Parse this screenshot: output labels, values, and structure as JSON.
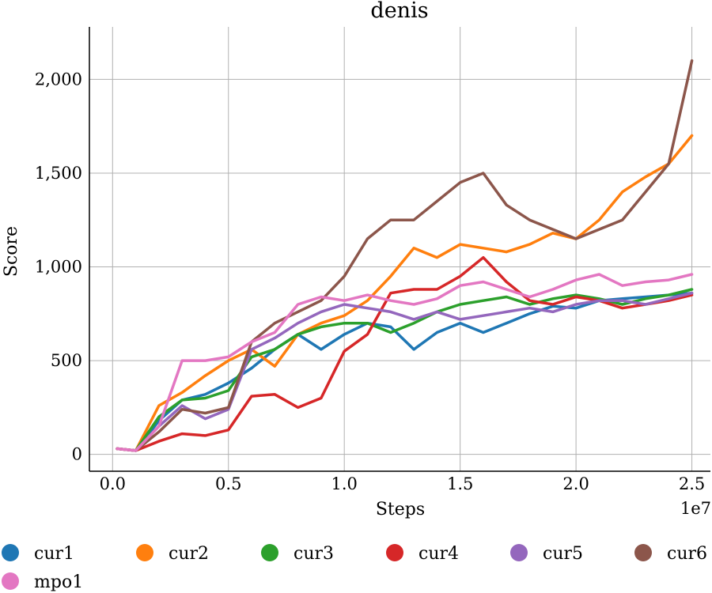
{
  "chart_data": {
    "type": "line",
    "title": "denis",
    "xlabel": "Steps",
    "ylabel": "Score",
    "x_offset_label": "1e7",
    "x_ticks": [
      "0.0",
      "0.5",
      "1.0",
      "1.5",
      "2.0",
      "2.5"
    ],
    "y_ticks": [
      "0",
      "500",
      "1,000",
      "1,500",
      "2,000"
    ],
    "xlim": [
      -0.1,
      2.58
    ],
    "ylim": [
      -90,
      2280
    ],
    "grid": true,
    "legend_position": "bottom",
    "series": [
      {
        "name": "cur1",
        "color": "#1f77b4",
        "x": [
          0.02,
          0.1,
          0.2,
          0.3,
          0.4,
          0.5,
          0.6,
          0.7,
          0.8,
          0.9,
          1.0,
          1.1,
          1.2,
          1.3,
          1.4,
          1.5,
          1.6,
          1.7,
          1.8,
          1.9,
          2.0,
          2.1,
          2.2,
          2.3,
          2.4,
          2.5
        ],
        "y": [
          30,
          20,
          180,
          290,
          320,
          380,
          460,
          560,
          640,
          560,
          640,
          700,
          680,
          560,
          650,
          700,
          650,
          700,
          750,
          790,
          780,
          820,
          830,
          840,
          850,
          860
        ]
      },
      {
        "name": "cur2",
        "color": "#ff7f0e",
        "x": [
          0.02,
          0.1,
          0.2,
          0.3,
          0.4,
          0.5,
          0.6,
          0.7,
          0.8,
          0.9,
          1.0,
          1.1,
          1.2,
          1.3,
          1.4,
          1.5,
          1.6,
          1.7,
          1.8,
          1.9,
          2.0,
          2.1,
          2.2,
          2.3,
          2.4,
          2.5
        ],
        "y": [
          30,
          20,
          260,
          330,
          420,
          500,
          560,
          470,
          640,
          700,
          740,
          820,
          950,
          1100,
          1050,
          1120,
          1100,
          1080,
          1120,
          1180,
          1150,
          1250,
          1400,
          1480,
          1550,
          1700
        ]
      },
      {
        "name": "cur3",
        "color": "#2ca02c",
        "x": [
          0.02,
          0.1,
          0.2,
          0.3,
          0.4,
          0.5,
          0.6,
          0.7,
          0.8,
          0.9,
          1.0,
          1.1,
          1.2,
          1.3,
          1.4,
          1.5,
          1.6,
          1.7,
          1.8,
          1.9,
          2.0,
          2.1,
          2.2,
          2.3,
          2.4,
          2.5
        ],
        "y": [
          30,
          20,
          200,
          290,
          300,
          340,
          520,
          560,
          640,
          680,
          700,
          700,
          650,
          700,
          760,
          800,
          820,
          840,
          800,
          830,
          850,
          830,
          800,
          830,
          850,
          880
        ]
      },
      {
        "name": "cur4",
        "color": "#d62728",
        "x": [
          0.02,
          0.1,
          0.2,
          0.3,
          0.4,
          0.5,
          0.6,
          0.7,
          0.8,
          0.9,
          1.0,
          1.1,
          1.2,
          1.3,
          1.4,
          1.5,
          1.6,
          1.7,
          1.8,
          1.9,
          2.0,
          2.1,
          2.2,
          2.3,
          2.4,
          2.5
        ],
        "y": [
          30,
          20,
          70,
          110,
          100,
          130,
          310,
          320,
          250,
          300,
          550,
          640,
          860,
          880,
          880,
          950,
          1050,
          920,
          820,
          800,
          840,
          820,
          780,
          800,
          820,
          850
        ]
      },
      {
        "name": "cur5",
        "color": "#9467bd",
        "x": [
          0.02,
          0.1,
          0.2,
          0.3,
          0.4,
          0.5,
          0.6,
          0.7,
          0.8,
          0.9,
          1.0,
          1.1,
          1.2,
          1.3,
          1.4,
          1.5,
          1.6,
          1.7,
          1.8,
          1.9,
          2.0,
          2.1,
          2.2,
          2.3,
          2.4,
          2.5
        ],
        "y": [
          30,
          20,
          150,
          260,
          190,
          240,
          560,
          620,
          700,
          760,
          800,
          780,
          760,
          720,
          760,
          720,
          740,
          760,
          780,
          760,
          800,
          820,
          820,
          800,
          830,
          860
        ]
      },
      {
        "name": "cur6",
        "color": "#8c564b",
        "x": [
          0.02,
          0.1,
          0.2,
          0.3,
          0.4,
          0.5,
          0.6,
          0.7,
          0.8,
          0.9,
          1.0,
          1.1,
          1.2,
          1.3,
          1.4,
          1.5,
          1.6,
          1.7,
          1.8,
          1.9,
          2.0,
          2.1,
          2.2,
          2.3,
          2.4,
          2.5
        ],
        "y": [
          30,
          20,
          120,
          240,
          220,
          250,
          600,
          700,
          760,
          820,
          950,
          1150,
          1250,
          1250,
          1350,
          1450,
          1500,
          1330,
          1250,
          1200,
          1150,
          1200,
          1250,
          1400,
          1550,
          2100
        ]
      },
      {
        "name": "mpo1",
        "color": "#e377c2",
        "x": [
          0.02,
          0.1,
          0.2,
          0.3,
          0.4,
          0.5,
          0.6,
          0.7,
          0.8,
          0.9,
          1.0,
          1.1,
          1.2,
          1.3,
          1.4,
          1.5,
          1.6,
          1.7,
          1.8,
          1.9,
          2.0,
          2.1,
          2.2,
          2.3,
          2.4,
          2.5
        ],
        "y": [
          30,
          20,
          150,
          500,
          500,
          520,
          600,
          650,
          800,
          840,
          820,
          850,
          820,
          800,
          830,
          900,
          920,
          880,
          840,
          880,
          930,
          960,
          900,
          920,
          930,
          960
        ]
      }
    ]
  }
}
